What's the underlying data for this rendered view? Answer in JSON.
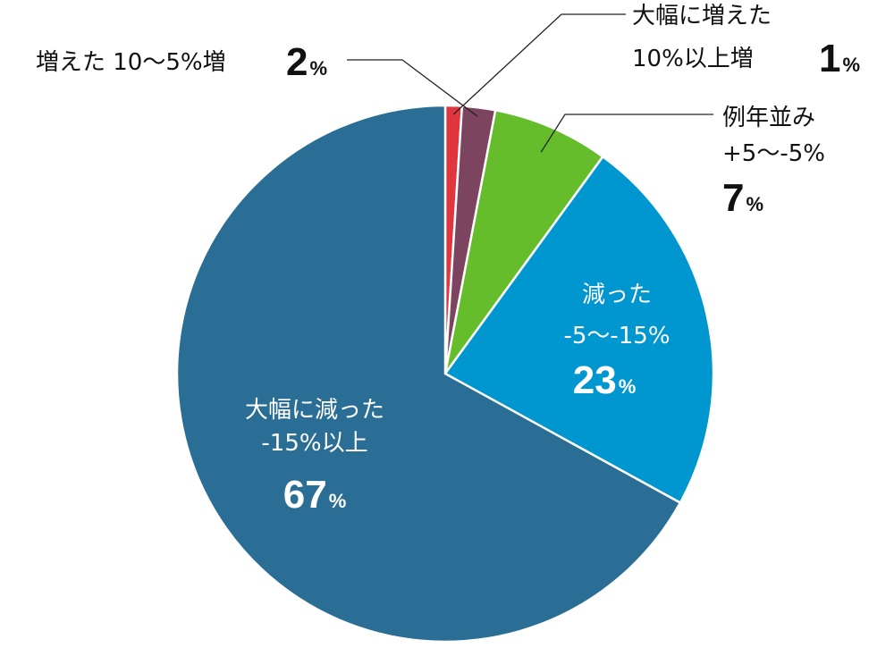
{
  "chart_data": {
    "type": "pie",
    "start_angle_deg": 0,
    "direction": "clockwise",
    "slices": [
      {
        "name": "increased_a_lot",
        "label_line1": "大幅に増えた",
        "label_line2": "10%以上増",
        "value": 1,
        "value_text": "1",
        "color": "#e2363f"
      },
      {
        "name": "increased",
        "label_line1": "増えた 10〜5%増",
        "value": 2,
        "value_text": "2",
        "color": "#7d4460"
      },
      {
        "name": "same_as_usual",
        "label_line1": "例年並み",
        "label_line2": "+5〜-5%",
        "value": 7,
        "value_text": "7",
        "color": "#66bd2c"
      },
      {
        "name": "decreased",
        "label_line1": "減った",
        "label_line2": "-5〜-15%",
        "value": 23,
        "value_text": "23",
        "color": "#0097d0"
      },
      {
        "name": "decreased_a_lot",
        "label_line1": "大幅に減った",
        "label_line2": "-15%以上",
        "value": 67,
        "value_text": "67",
        "color": "#2a6d95"
      }
    ],
    "percent_sign": "%"
  }
}
